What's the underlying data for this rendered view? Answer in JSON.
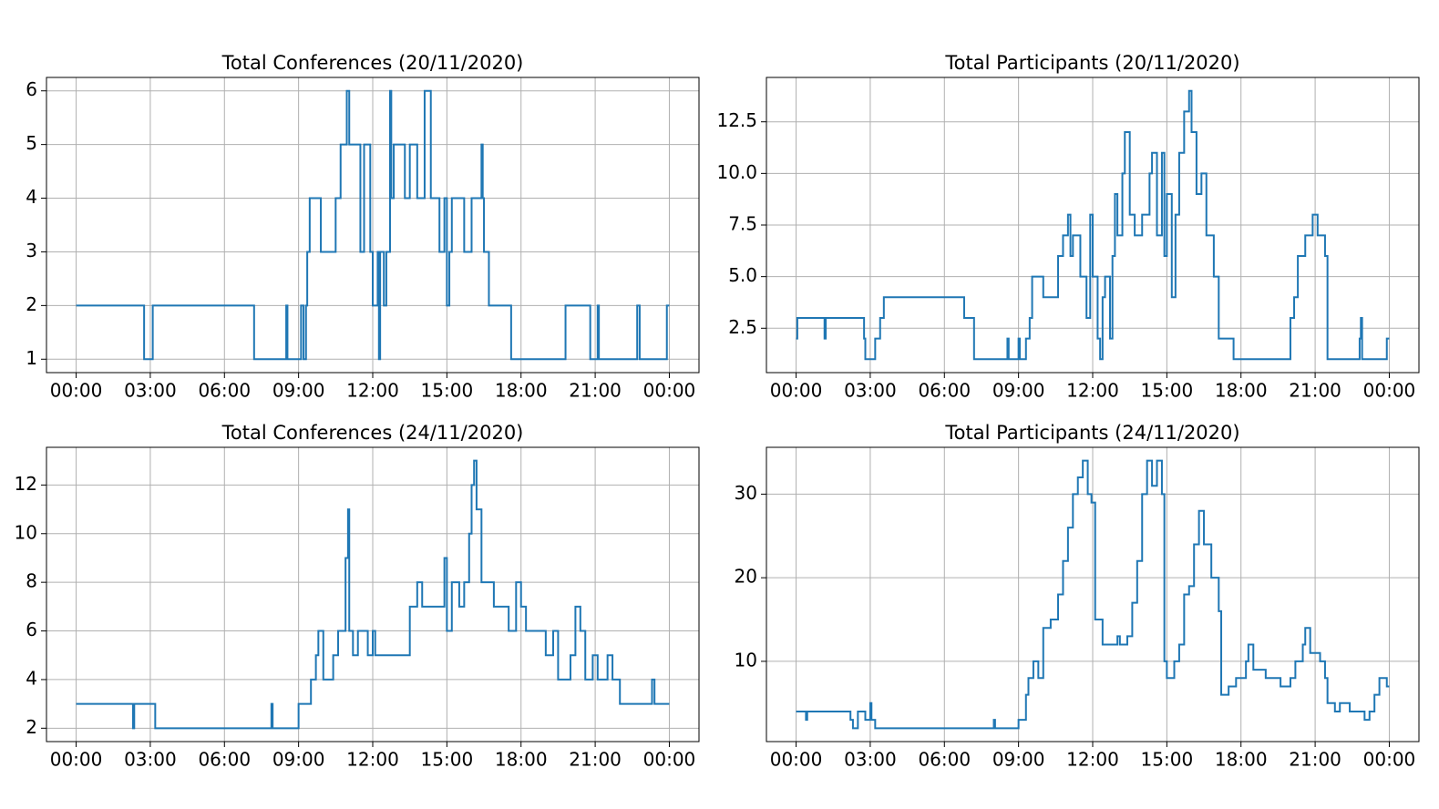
{
  "chart_data": [
    {
      "type": "line",
      "step": "post",
      "title": "Total Conferences (20/11/2020)",
      "color": "#1f77b4",
      "grid": true,
      "xlim": [
        -1.2,
        25.2
      ],
      "xticks": [
        {
          "value": 0,
          "label": "00:00"
        },
        {
          "value": 3,
          "label": "03:00"
        },
        {
          "value": 6,
          "label": "06:00"
        },
        {
          "value": 9,
          "label": "09:00"
        },
        {
          "value": 12,
          "label": "12:00"
        },
        {
          "value": 15,
          "label": "15:00"
        },
        {
          "value": 18,
          "label": "18:00"
        },
        {
          "value": 21,
          "label": "21:00"
        },
        {
          "value": 24,
          "label": "00:00"
        }
      ],
      "ylim": [
        0.75,
        6.25
      ],
      "yticks": [
        1,
        2,
        3,
        4,
        5,
        6
      ],
      "x": [
        0,
        2.75,
        3.1,
        7.2,
        8.5,
        8.55,
        9.1,
        9.2,
        9.3,
        9.35,
        9.45,
        9.9,
        10.5,
        10.7,
        10.95,
        11.05,
        11.5,
        11.65,
        11.9,
        12.0,
        12.2,
        12.25,
        12.3,
        12.45,
        12.55,
        12.7,
        12.75,
        12.85,
        13.3,
        13.5,
        13.8,
        14.1,
        14.35,
        14.7,
        14.9,
        15.0,
        15.1,
        15.2,
        15.7,
        16.0,
        16.4,
        16.45,
        16.5,
        16.7,
        17.6,
        19.8,
        20.8,
        21.1,
        21.15,
        22.7,
        22.8,
        23.9,
        24
      ],
      "values": [
        2,
        1,
        2,
        1,
        2,
        1,
        2,
        1,
        2,
        3,
        4,
        3,
        4,
        5,
        6,
        5,
        3,
        5,
        3,
        2,
        3,
        1,
        3,
        2,
        3,
        6,
        4,
        5,
        4,
        5,
        4,
        6,
        4,
        3,
        4,
        2,
        3,
        4,
        3,
        4,
        5,
        4,
        3,
        2,
        1,
        2,
        1,
        2,
        1,
        2,
        1,
        2,
        2
      ]
    },
    {
      "type": "line",
      "step": "post",
      "title": "Total Participants (20/11/2020)",
      "color": "#1f77b4",
      "grid": true,
      "xlim": [
        -1.2,
        25.2
      ],
      "xticks": [
        {
          "value": 0,
          "label": "00:00"
        },
        {
          "value": 3,
          "label": "03:00"
        },
        {
          "value": 6,
          "label": "06:00"
        },
        {
          "value": 9,
          "label": "09:00"
        },
        {
          "value": 12,
          "label": "12:00"
        },
        {
          "value": 15,
          "label": "15:00"
        },
        {
          "value": 18,
          "label": "18:00"
        },
        {
          "value": 21,
          "label": "21:00"
        },
        {
          "value": 24,
          "label": "00:00"
        }
      ],
      "ylim": [
        0.35,
        14.65
      ],
      "yticks": [
        2.5,
        {
          "value": 5,
          "label": "5.0"
        },
        7.5,
        {
          "value": 10,
          "label": "10.0"
        },
        12.5
      ],
      "x": [
        0,
        0.05,
        1.15,
        1.2,
        2.75,
        2.8,
        3.2,
        3.4,
        3.55,
        6.8,
        7.2,
        8.55,
        8.6,
        9.0,
        9.05,
        9.3,
        9.45,
        9.55,
        10.0,
        10.6,
        10.8,
        11.0,
        11.1,
        11.2,
        11.5,
        11.75,
        11.9,
        12.0,
        12.2,
        12.3,
        12.4,
        12.5,
        12.7,
        12.8,
        12.9,
        13.0,
        13.2,
        13.3,
        13.5,
        13.7,
        14.0,
        14.3,
        14.4,
        14.6,
        14.8,
        14.9,
        15.0,
        15.2,
        15.35,
        15.5,
        15.7,
        15.9,
        16.0,
        16.2,
        16.4,
        16.6,
        16.9,
        17.1,
        17.7,
        20.0,
        20.15,
        20.3,
        20.6,
        20.9,
        21.1,
        21.4,
        21.5,
        22.8,
        22.85,
        22.9,
        23.9,
        24
      ],
      "values": [
        2,
        3,
        2,
        3,
        2,
        1,
        2,
        3,
        4,
        3,
        1,
        2,
        1,
        2,
        1,
        2,
        3,
        5,
        4,
        6,
        7,
        8,
        6,
        7,
        5,
        3,
        8,
        5,
        2,
        1,
        4,
        5,
        2,
        6,
        9,
        7,
        10,
        12,
        8,
        7,
        8,
        10,
        11,
        7,
        11,
        6,
        9,
        4,
        8,
        11,
        13,
        14,
        12,
        9,
        10,
        7,
        5,
        2,
        1,
        3,
        4,
        6,
        7,
        8,
        7,
        6,
        1,
        2,
        3,
        1,
        2,
        2
      ]
    },
    {
      "type": "line",
      "step": "post",
      "title": "Total Conferences (24/11/2020)",
      "color": "#1f77b4",
      "grid": true,
      "xlim": [
        -1.2,
        25.2
      ],
      "xticks": [
        {
          "value": 0,
          "label": "00:00"
        },
        {
          "value": 3,
          "label": "03:00"
        },
        {
          "value": 6,
          "label": "06:00"
        },
        {
          "value": 9,
          "label": "09:00"
        },
        {
          "value": 12,
          "label": "12:00"
        },
        {
          "value": 15,
          "label": "15:00"
        },
        {
          "value": 18,
          "label": "18:00"
        },
        {
          "value": 21,
          "label": "21:00"
        },
        {
          "value": 24,
          "label": "00:00"
        }
      ],
      "ylim": [
        1.45,
        13.55
      ],
      "yticks": [
        2,
        4,
        6,
        8,
        10,
        12
      ],
      "x": [
        0,
        2.3,
        2.35,
        3.2,
        7.9,
        7.95,
        9.0,
        9.5,
        9.7,
        9.8,
        10.0,
        10.4,
        10.6,
        10.9,
        11.0,
        11.05,
        11.2,
        11.4,
        11.8,
        12.0,
        12.1,
        13.5,
        13.8,
        14.0,
        14.9,
        15.0,
        15.2,
        15.5,
        15.7,
        15.9,
        16.0,
        16.1,
        16.2,
        16.4,
        16.9,
        17.5,
        17.8,
        18.0,
        18.2,
        19.0,
        19.3,
        19.5,
        20.0,
        20.2,
        20.4,
        20.6,
        20.9,
        21.1,
        21.5,
        21.7,
        22.0,
        23.3,
        23.4,
        24
      ],
      "values": [
        3,
        2,
        3,
        2,
        3,
        2,
        3,
        4,
        5,
        6,
        4,
        5,
        6,
        9,
        11,
        6,
        5,
        6,
        5,
        6,
        5,
        7,
        8,
        7,
        9,
        6,
        8,
        7,
        8,
        10,
        12,
        13,
        11,
        8,
        7,
        6,
        8,
        7,
        6,
        5,
        6,
        4,
        5,
        7,
        6,
        4,
        5,
        4,
        5,
        4,
        3,
        4,
        3,
        3
      ]
    },
    {
      "type": "line",
      "step": "post",
      "title": "Total Participants (24/11/2020)",
      "color": "#1f77b4",
      "grid": true,
      "xlim": [
        -1.2,
        25.2
      ],
      "xticks": [
        {
          "value": 0,
          "label": "00:00"
        },
        {
          "value": 3,
          "label": "03:00"
        },
        {
          "value": 6,
          "label": "06:00"
        },
        {
          "value": 9,
          "label": "09:00"
        },
        {
          "value": 12,
          "label": "12:00"
        },
        {
          "value": 15,
          "label": "15:00"
        },
        {
          "value": 18,
          "label": "18:00"
        },
        {
          "value": 21,
          "label": "21:00"
        },
        {
          "value": 24,
          "label": "00:00"
        }
      ],
      "ylim": [
        0.4,
        35.6
      ],
      "yticks": [
        10,
        20,
        30
      ],
      "x": [
        0,
        0.4,
        0.45,
        2.2,
        2.3,
        2.5,
        2.8,
        3.0,
        3.05,
        3.2,
        8.0,
        8.05,
        9.0,
        9.3,
        9.4,
        9.6,
        9.8,
        10.0,
        10.3,
        10.6,
        10.8,
        11.0,
        11.2,
        11.4,
        11.6,
        11.8,
        11.95,
        12.1,
        12.4,
        13.0,
        13.1,
        13.4,
        13.6,
        13.8,
        14.0,
        14.2,
        14.4,
        14.6,
        14.8,
        14.9,
        15.0,
        15.3,
        15.5,
        15.7,
        15.9,
        16.1,
        16.3,
        16.5,
        16.8,
        17.1,
        17.2,
        17.5,
        17.8,
        18.2,
        18.3,
        18.5,
        19.0,
        19.6,
        20.0,
        20.2,
        20.5,
        20.6,
        20.8,
        21.2,
        21.4,
        21.5,
        21.8,
        22.0,
        22.4,
        23.0,
        23.2,
        23.4,
        23.6,
        23.9,
        24
      ],
      "values": [
        4,
        3,
        4,
        3,
        2,
        4,
        3,
        5,
        3,
        2,
        3,
        2,
        3,
        6,
        8,
        10,
        8,
        14,
        15,
        18,
        22,
        26,
        30,
        32,
        34,
        30,
        29,
        15,
        12,
        13,
        12,
        13,
        17,
        22,
        30,
        34,
        31,
        34,
        30,
        10,
        8,
        10,
        12,
        18,
        19,
        24,
        28,
        24,
        20,
        16,
        6,
        7,
        8,
        10,
        12,
        9,
        8,
        7,
        8,
        10,
        12,
        14,
        11,
        10,
        8,
        5,
        4,
        5,
        4,
        3,
        4,
        6,
        8,
        7,
        7
      ]
    }
  ]
}
